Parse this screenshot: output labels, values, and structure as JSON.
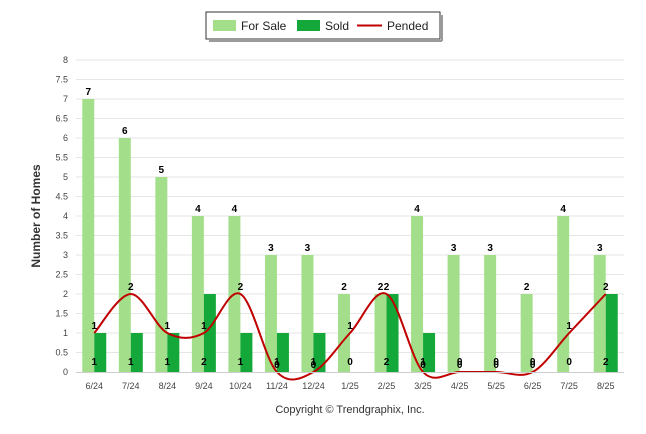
{
  "chart_data": {
    "type": "bar",
    "categories": [
      "6/24",
      "7/24",
      "8/24",
      "9/24",
      "10/24",
      "11/24",
      "12/24",
      "1/25",
      "2/25",
      "3/25",
      "4/25",
      "5/25",
      "6/25",
      "7/25",
      "8/25"
    ],
    "series": [
      {
        "name": "For Sale",
        "kind": "bar",
        "color": "#a3df8a",
        "values": [
          7,
          6,
          5,
          4,
          4,
          3,
          3,
          2,
          2,
          4,
          3,
          3,
          2,
          4,
          3
        ]
      },
      {
        "name": "Sold",
        "kind": "bar",
        "color": "#14a83b",
        "values": [
          1,
          1,
          1,
          2,
          1,
          1,
          1,
          0,
          2,
          1,
          0,
          0,
          0,
          0,
          2
        ]
      },
      {
        "name": "Pended",
        "kind": "line",
        "color": "#c00000",
        "values": [
          1,
          2,
          1,
          1,
          2,
          0,
          0,
          1,
          2,
          0,
          0,
          0,
          0,
          1,
          2
        ]
      }
    ],
    "ylabel": "Number of Homes",
    "xlabel": "",
    "ylim": [
      0,
      8
    ],
    "yticks": [
      "0",
      "0.5",
      "1",
      "1.5",
      "2",
      "2.5",
      "3",
      "3.5",
      "4",
      "4.5",
      "5",
      "5.5",
      "6",
      "6.5",
      "7",
      "7.5",
      "8"
    ],
    "grid": true,
    "legend_position": "top-center",
    "footer": "Copyright © Trendgraphix, Inc."
  }
}
